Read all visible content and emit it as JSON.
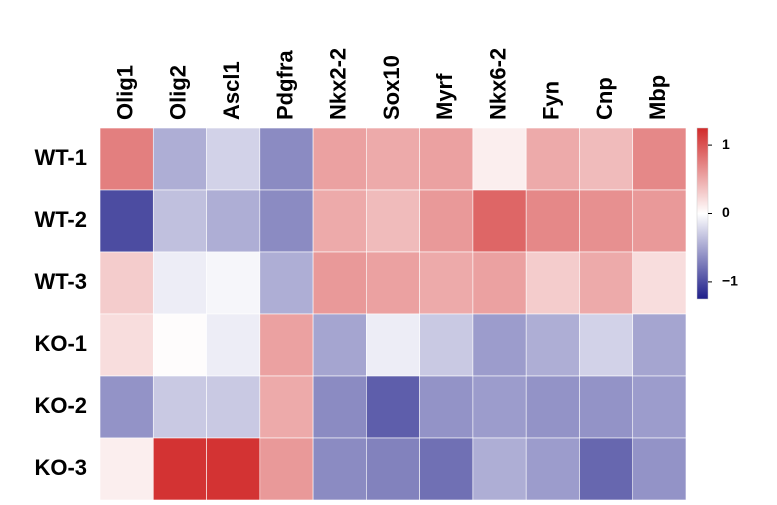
{
  "chart_data": {
    "type": "heatmap",
    "columns": [
      "Olig1",
      "Olig2",
      "Ascl1",
      "Pdgfra",
      "Nkx2-2",
      "Sox10",
      "Myrf",
      "Nkx6-2",
      "Fyn",
      "Cnp",
      "Mbp"
    ],
    "rows": [
      "WT-1",
      "WT-2",
      "WT-3",
      "KO-1",
      "KO-2",
      "KO-3"
    ],
    "values": [
      [
        0.75,
        -0.45,
        -0.25,
        -0.65,
        0.55,
        0.5,
        0.55,
        0.1,
        0.5,
        0.4,
        0.7
      ],
      [
        -1.0,
        -0.35,
        -0.45,
        -0.65,
        0.5,
        0.4,
        0.6,
        0.9,
        0.7,
        0.65,
        0.6
      ],
      [
        0.3,
        -0.1,
        -0.05,
        -0.45,
        0.6,
        0.55,
        0.5,
        0.55,
        0.3,
        0.5,
        0.2
      ],
      [
        0.2,
        0.02,
        -0.1,
        0.55,
        -0.5,
        -0.1,
        -0.3,
        -0.55,
        -0.45,
        -0.25,
        -0.5
      ],
      [
        -0.6,
        -0.3,
        -0.3,
        0.5,
        -0.65,
        -0.9,
        -0.6,
        -0.55,
        -0.6,
        -0.6,
        -0.55
      ],
      [
        0.1,
        1.2,
        1.2,
        0.6,
        -0.65,
        -0.7,
        -0.8,
        -0.45,
        -0.55,
        -0.85,
        -0.6
      ]
    ],
    "color_scale": {
      "min": -1.25,
      "max": 1.25,
      "low_color": "#1f1f8a",
      "mid_color": "#ffffff",
      "high_color": "#d12a2a"
    },
    "colorbar_ticks": [
      {
        "value": 1,
        "label": "1"
      },
      {
        "value": 0,
        "label": "0"
      },
      {
        "value": -1,
        "label": "−1"
      }
    ]
  }
}
